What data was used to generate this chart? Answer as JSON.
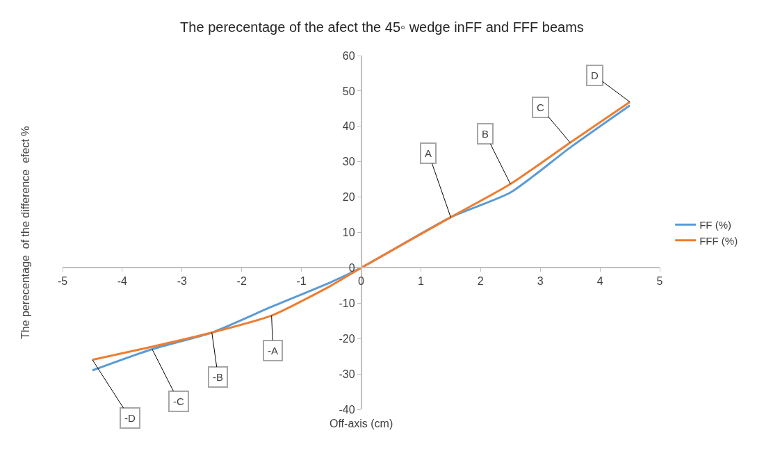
{
  "chart_data": {
    "type": "line",
    "title": "The perecentage of the afect the 45◦ wedge inFF and FFF beams",
    "xlabel": "Off-axis (cm)",
    "ylabel": "The perecentage  of the difference  efect %",
    "x": [
      -4.5,
      -3.5,
      -2.5,
      -1.5,
      -0.5,
      0,
      1.5,
      2.5,
      3.5,
      4.5
    ],
    "series": [
      {
        "name": "FF (%)",
        "color": "#5b9bd5",
        "values": [
          -29,
          -23,
          -18.3,
          -11,
          -4,
          0,
          14.3,
          21.3,
          34,
          45.9
        ]
      },
      {
        "name": "FFF (%)",
        "color": "#ed7d31",
        "values": [
          -26,
          -22.3,
          -18.3,
          -13.5,
          -5,
          0,
          14.3,
          23.7,
          35.4,
          46.9
        ]
      }
    ],
    "xlim": [
      -5,
      5
    ],
    "xticks": [
      -5,
      -4,
      -3,
      -2,
      -1,
      0,
      1,
      2,
      3,
      4,
      5
    ],
    "ylim": [
      -40,
      60
    ],
    "yticks": [
      -40,
      -30,
      -20,
      -10,
      0,
      10,
      20,
      30,
      40,
      50,
      60
    ],
    "legend": "right",
    "marker": "none",
    "line_style": "solid",
    "annotations": [
      {
        "text": "A",
        "x": 1.5,
        "y": 14.3
      },
      {
        "text": "B",
        "x": 2.5,
        "y": 23.7
      },
      {
        "text": "C",
        "x": 3.5,
        "y": 35.4
      },
      {
        "text": "D",
        "x": 4.5,
        "y": 46.9
      },
      {
        "text": "-A",
        "x": -1.5,
        "y": -13.5
      },
      {
        "text": "-B",
        "x": -2.5,
        "y": -18.3
      },
      {
        "text": "-C",
        "x": -3.5,
        "y": -23
      },
      {
        "text": "-D",
        "x": -4.5,
        "y": -26
      }
    ]
  }
}
